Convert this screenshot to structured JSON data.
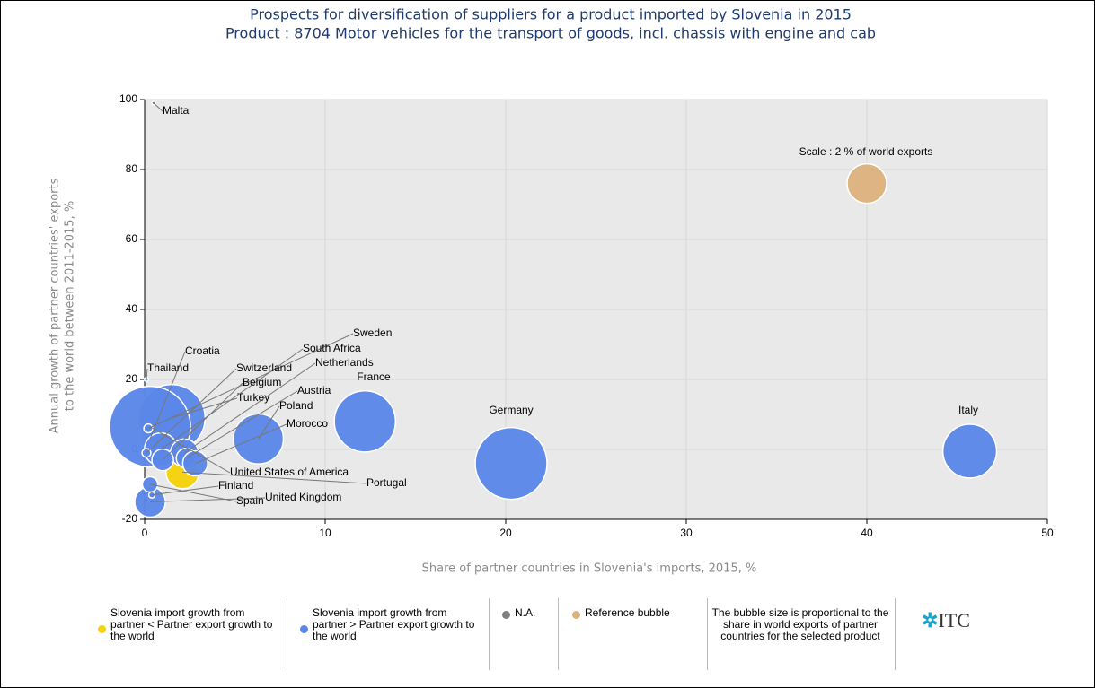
{
  "chart_data": {
    "type": "bubble",
    "title": "Prospects for diversification of suppliers for a product imported by Slovenia in 2015",
    "subtitle": "Product : 8704 Motor vehicles for the transport of goods, incl. chassis with engine and cab",
    "xlabel": "Share of partner countries in Slovenia's imports, 2015, %",
    "ylabel": [
      "Annual growth of partner countries' exports",
      "to the world between 2011-2015, %"
    ],
    "xlim": [
      0,
      50
    ],
    "xticks": [
      0,
      10,
      20,
      30,
      40,
      50
    ],
    "ylim": [
      -20,
      100
    ],
    "yticks": [
      -20,
      0,
      20,
      40,
      60,
      80,
      100
    ],
    "grid": true,
    "series": [
      {
        "name": "Slovenia import growth from partner < Partner export growth to the world",
        "color": "#f5d20a",
        "labels": [
          "Croatia",
          "Portugal"
        ],
        "x": [
          0.3,
          2.1
        ],
        "y": [
          3,
          -6.5
        ],
        "size": [
          0.4,
          1.4
        ]
      },
      {
        "name": "Slovenia import growth from partner > Partner export growth to the world",
        "color": "#5b87e8",
        "labels": [
          "Italy",
          "Germany",
          "France",
          "Poland",
          "Turkey",
          "United States of America",
          "Sweden",
          "South Africa",
          "Netherlands",
          "Austria",
          "Belgium",
          "Switzerland",
          "Morocco",
          "United Kingdom",
          "Spain",
          "Finland",
          "Thailand"
        ],
        "x": [
          45.7,
          20.3,
          12.2,
          6.3,
          1.5,
          0.3,
          0.2,
          0.9,
          2.2,
          2.3,
          1.0,
          0.1,
          2.8,
          0.3,
          0.3,
          0.4,
          0.1
        ],
        "y": [
          -0.5,
          -4,
          8,
          3,
          9,
          6.5,
          6,
          0,
          -1,
          -2.5,
          -3,
          -1,
          -4,
          -15,
          -10,
          -13,
          20
        ],
        "size": [
          3.7,
          6.6,
          4.8,
          3.2,
          5.7,
          8.4,
          0.1,
          1.4,
          1.0,
          0.5,
          0.6,
          0.1,
          0.8,
          1.2,
          0.3,
          0.05,
          0.02
        ]
      },
      {
        "name": "N.A.",
        "color": "#7f7f7f",
        "labels": [
          "Malta"
        ],
        "x": [
          0.5
        ],
        "y": [
          99
        ],
        "size": [
          0.01
        ]
      },
      {
        "name": "Reference bubble",
        "color": "#dcb27e",
        "labels": [
          "Scale : 2 % of world exports"
        ],
        "x": [
          40
        ],
        "y": [
          76
        ],
        "size": [
          2
        ]
      }
    ],
    "size_note": "The bubble size is proportional to the share in world exports of partner countries for the selected product",
    "logo": "ITC"
  }
}
